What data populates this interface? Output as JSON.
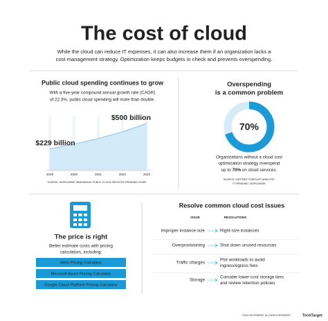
{
  "header": {
    "title": "The cost of cloud",
    "subtitle": [
      "While the cloud can reduce IT expenses, it can also increase them if an organization lacks a",
      "cost management strategy. Optimization keeps budgets in check and prevents overspending."
    ]
  },
  "spending": {
    "title": "Public cloud spending continues to grow",
    "description": [
      "With a five-year compound annual growth rate (CAGR)",
      "of 22.3%, public cloud spending will more than double."
    ],
    "chart_data": {
      "type": "area",
      "x": [
        2019,
        2020,
        2021,
        2022,
        2023
      ],
      "values": [
        229,
        280,
        340,
        410,
        500
      ],
      "value_labels": [
        "$229 billion",
        null,
        null,
        null,
        "$500 billion"
      ],
      "color": "#d3ebf8",
      "line_color": "#9cc9e6",
      "label_color": "#1a9ad6"
    },
    "source": "SOURCE: WORLDWIDE SEMIANNUAL PUBLIC CLOUD SERVICES SPENDING GUIDE"
  },
  "overspending": {
    "title": [
      "Overspending",
      "is a common problem"
    ],
    "value": 70,
    "value_label": "70%",
    "color": "#1a9ad6",
    "track_color": "#d6ebf8",
    "description": [
      "Organizations without a cloud cost",
      "optimization strategy overspend"
    ],
    "description_last": [
      "up to ",
      "70%",
      " on cloud services."
    ],
    "source": [
      "SOURCE: GARTNER FORECAST ANALYSIS:",
      "IT SPENDING, WORLDWIDE"
    ]
  },
  "pricing": {
    "title": "The price is right",
    "description": [
      "Better estimate costs with pricing",
      "calculators, including:"
    ],
    "calculators": [
      "AWS Pricing Calculator",
      "Microsoft Azure Pricing Calculator",
      "Google Cloud Platform Pricing Calculator"
    ]
  },
  "issues": {
    "title": "Resolve common cloud cost issues",
    "headers": [
      "ISSUE",
      "RESOLUTIONS"
    ],
    "rows": [
      {
        "issue": "Improper instance size",
        "resolution": [
          "Right-size instances"
        ]
      },
      {
        "issue": "Overprovisioning",
        "resolution": [
          "Shut down unused resources"
        ]
      },
      {
        "issue": "Traffic charges",
        "resolution": [
          "Plot workloads to avoid",
          "ingress/egress fees"
        ]
      },
      {
        "issue": "Storage",
        "resolution": [
          "Consider lower-cost storage tiers",
          "and review retention policies"
        ]
      }
    ]
  },
  "footer": {
    "copyright": "©2023 TECHTARGET. ALL RIGHTS RESERVED",
    "brand": "TechTarget"
  }
}
